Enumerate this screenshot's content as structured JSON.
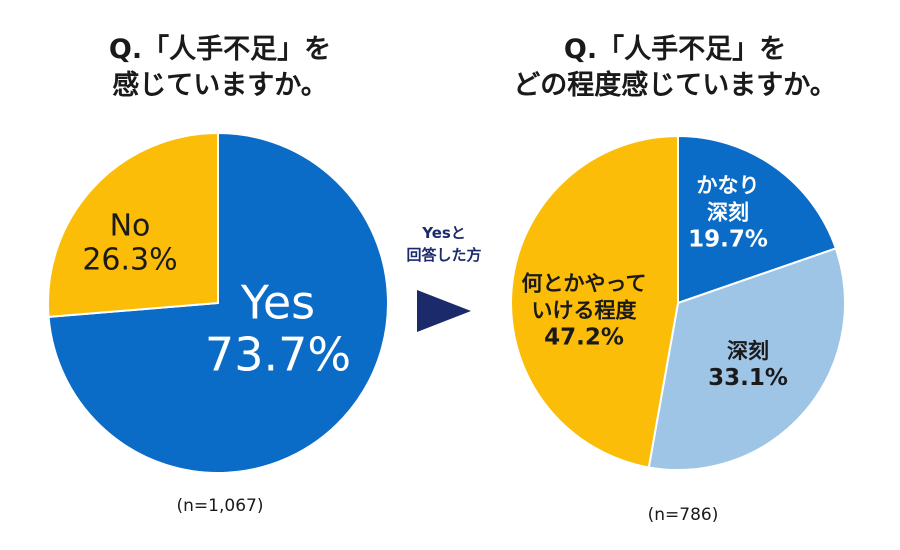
{
  "left_chart": {
    "title_line1": "Q.「人手不足」を",
    "title_line2": "感じていますか。",
    "n_label": "(n=1,067)"
  },
  "right_chart": {
    "title_line1": "Q.「人手不足」を",
    "title_line2": "どの程度感じていますか。",
    "n_label": "(n=786)"
  },
  "arrow": {
    "line1": "Yesと",
    "line2": "回答した方",
    "color": "#1b2a6b"
  },
  "chart_data": [
    {
      "type": "pie",
      "title": "Q.「人手不足」を感じていますか。",
      "n": "(n=1,067)",
      "start": "12 o'clock, clockwise",
      "slices": [
        {
          "label": "Yes",
          "value": 73.7,
          "value_label": "73.7%",
          "color": "#0a6cc6",
          "text_color": "#ffffff"
        },
        {
          "label": "No",
          "value": 26.3,
          "value_label": "26.3%",
          "color": "#fbbd08",
          "text_color": "#1a1a1a"
        }
      ]
    },
    {
      "type": "pie",
      "title": "Q.「人手不足」をどの程度感じていますか。",
      "n": "(n=786)",
      "start": "12 o'clock, clockwise",
      "slices": [
        {
          "label": "かなり深刻",
          "label_lines": [
            "かなり",
            "深刻"
          ],
          "value": 19.7,
          "value_label": "19.7%",
          "color": "#0a6cc6",
          "text_color": "#ffffff"
        },
        {
          "label": "深刻",
          "label_lines": [
            "深刻"
          ],
          "value": 33.1,
          "value_label": "33.1%",
          "color": "#9fc5e6",
          "text_color": "#1a1a1a"
        },
        {
          "label": "何とかやっていける程度",
          "label_lines": [
            "何とかやって",
            "いける程度"
          ],
          "value": 47.2,
          "value_label": "47.2%",
          "color": "#fbbd08",
          "text_color": "#1a1a1a"
        }
      ]
    }
  ]
}
